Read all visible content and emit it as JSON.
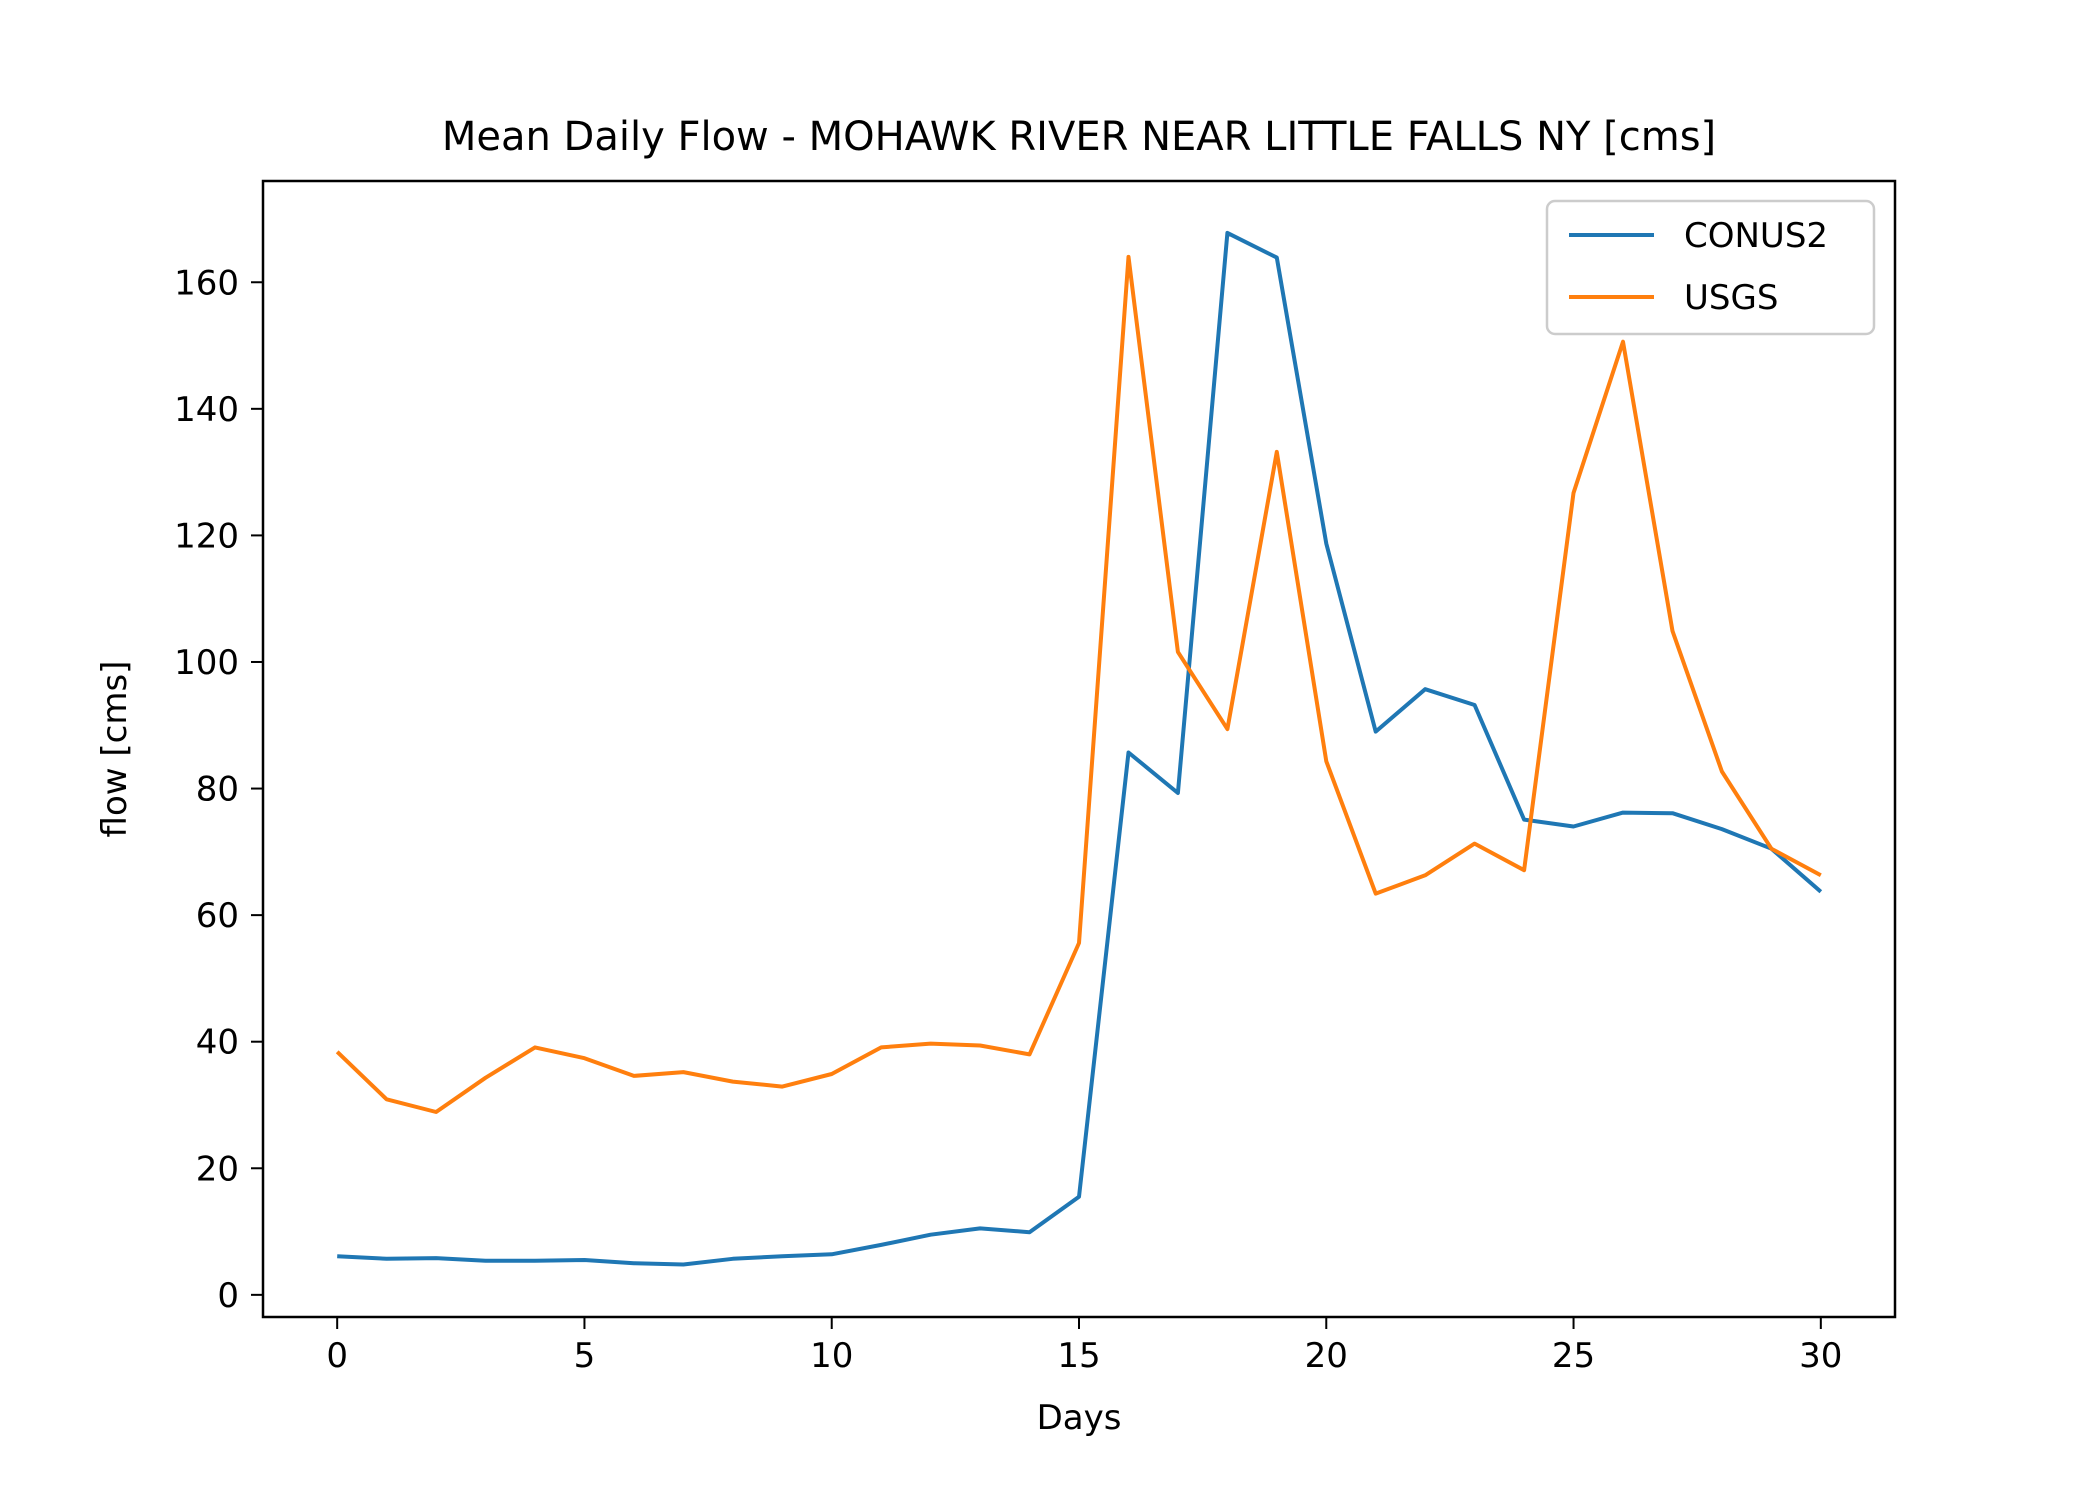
{
  "chart_data": {
    "type": "line",
    "title": "Mean Daily Flow - MOHAWK RIVER NEAR LITTLE FALLS NY [cms]",
    "xlabel": "Days",
    "ylabel": "flow [cms]",
    "xlim": [
      -1.5,
      31.5
    ],
    "ylim": [
      -3.5,
      176
    ],
    "xticks": [
      0,
      5,
      10,
      15,
      20,
      25,
      30
    ],
    "yticks": [
      0,
      20,
      40,
      60,
      80,
      100,
      120,
      140,
      160
    ],
    "legend": {
      "position": "top-right"
    },
    "grid": false,
    "x": [
      0,
      1,
      2,
      3,
      4,
      5,
      6,
      7,
      8,
      9,
      10,
      11,
      12,
      13,
      14,
      15,
      16,
      17,
      18,
      19,
      20,
      21,
      22,
      23,
      24,
      25,
      26,
      27,
      28,
      29,
      30
    ],
    "series": [
      {
        "name": "CONUS2",
        "color": "#1f77b4",
        "values": [
          6.1,
          5.7,
          5.8,
          5.4,
          5.4,
          5.5,
          5.0,
          4.8,
          5.7,
          6.1,
          6.4,
          7.9,
          9.5,
          10.5,
          9.9,
          15.5,
          85.7,
          79.3,
          167.8,
          163.9,
          118.7,
          89.0,
          95.7,
          93.2,
          75.1,
          74.0,
          76.2,
          76.1,
          73.6,
          70.5,
          63.7
        ]
      },
      {
        "name": "USGS",
        "color": "#ff7f0e",
        "values": [
          38.4,
          30.9,
          28.9,
          34.3,
          39.1,
          37.4,
          34.6,
          35.2,
          33.7,
          32.9,
          34.9,
          39.1,
          39.7,
          39.4,
          38.0,
          55.6,
          164.0,
          101.6,
          89.4,
          133.2,
          84.3,
          63.4,
          66.3,
          71.3,
          67.1,
          126.7,
          150.6,
          104.9,
          82.7,
          70.5,
          66.3
        ]
      }
    ]
  }
}
